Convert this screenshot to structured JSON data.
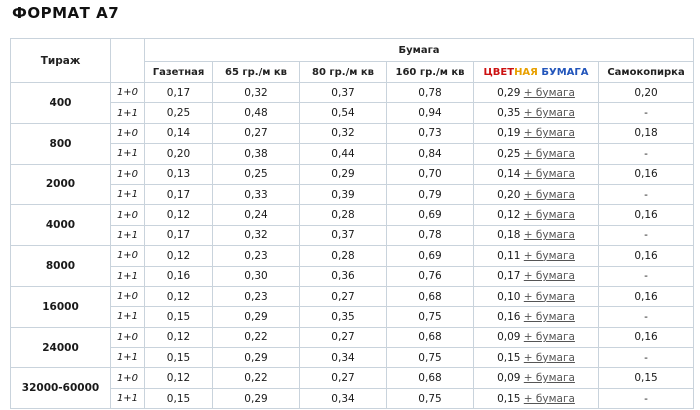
{
  "title": "ФОРМАТ А7",
  "headers": {
    "tirazh": "Тираж",
    "bumaga": "Бумага",
    "cols": [
      "Газетная",
      "65 гр./м кв",
      "80 гр./м кв",
      "160 гр./м кв",
      "ЦВЕТНАЯ БУМАГА",
      "Самокопирка"
    ],
    "color_word_parts": [
      "ЦВЕТ",
      "НАЯ",
      " ",
      "БУМАГА"
    ]
  },
  "plus_label": "+ бумага",
  "rows": [
    {
      "tirazh": "400",
      "sub": "1+0",
      "vals": [
        "0,17",
        "0,32",
        "0,37",
        "0,78",
        "0,29",
        "0,20"
      ]
    },
    {
      "tirazh": "400",
      "sub": "1+1",
      "vals": [
        "0,25",
        "0,48",
        "0,54",
        "0,94",
        "0,35",
        "-"
      ]
    },
    {
      "tirazh": "800",
      "sub": "1+0",
      "vals": [
        "0,14",
        "0,27",
        "0,32",
        "0,73",
        "0,19",
        "0,18"
      ]
    },
    {
      "tirazh": "800",
      "sub": "1+1",
      "vals": [
        "0,20",
        "0,38",
        "0,44",
        "0,84",
        "0,25",
        "-"
      ]
    },
    {
      "tirazh": "2000",
      "sub": "1+0",
      "vals": [
        "0,13",
        "0,25",
        "0,29",
        "0,70",
        "0,14",
        "0,16"
      ]
    },
    {
      "tirazh": "2000",
      "sub": "1+1",
      "vals": [
        "0,17",
        "0,33",
        "0,39",
        "0,79",
        "0,20",
        "-"
      ]
    },
    {
      "tirazh": "4000",
      "sub": "1+0",
      "vals": [
        "0,12",
        "0,24",
        "0,28",
        "0,69",
        "0,12",
        "0,16"
      ]
    },
    {
      "tirazh": "4000",
      "sub": "1+1",
      "vals": [
        "0,17",
        "0,32",
        "0,37",
        "0,78",
        "0,18",
        "-"
      ]
    },
    {
      "tirazh": "8000",
      "sub": "1+0",
      "vals": [
        "0,12",
        "0,23",
        "0,28",
        "0,69",
        "0,11",
        "0,16"
      ]
    },
    {
      "tirazh": "8000",
      "sub": "1+1",
      "vals": [
        "0,16",
        "0,30",
        "0,36",
        "0,76",
        "0,17",
        "-"
      ]
    },
    {
      "tirazh": "16000",
      "sub": "1+0",
      "vals": [
        "0,12",
        "0,23",
        "0,27",
        "0,68",
        "0,10",
        "0,16"
      ]
    },
    {
      "tirazh": "16000",
      "sub": "1+1",
      "vals": [
        "0,15",
        "0,29",
        "0,35",
        "0,75",
        "0,16",
        "-"
      ]
    },
    {
      "tirazh": "24000",
      "sub": "1+0",
      "vals": [
        "0,12",
        "0,22",
        "0,27",
        "0,68",
        "0,09",
        "0,16"
      ]
    },
    {
      "tirazh": "24000",
      "sub": "1+1",
      "vals": [
        "0,15",
        "0,29",
        "0,34",
        "0,75",
        "0,15",
        "-"
      ]
    },
    {
      "tirazh": "32000-60000",
      "sub": "1+0",
      "vals": [
        "0,12",
        "0,22",
        "0,27",
        "0,68",
        "0,09",
        "0,15"
      ]
    },
    {
      "tirazh": "32000-60000",
      "sub": "1+1",
      "vals": [
        "0,15",
        "0,29",
        "0,34",
        "0,75",
        "0,15",
        "-"
      ]
    }
  ],
  "colors": {
    "border": "#c9d3dc",
    "color_paper_red": "#cc1111",
    "color_paper_orange": "#e8a000",
    "color_paper_green": "#2c8a2c",
    "color_paper_blue": "#2255bb"
  }
}
